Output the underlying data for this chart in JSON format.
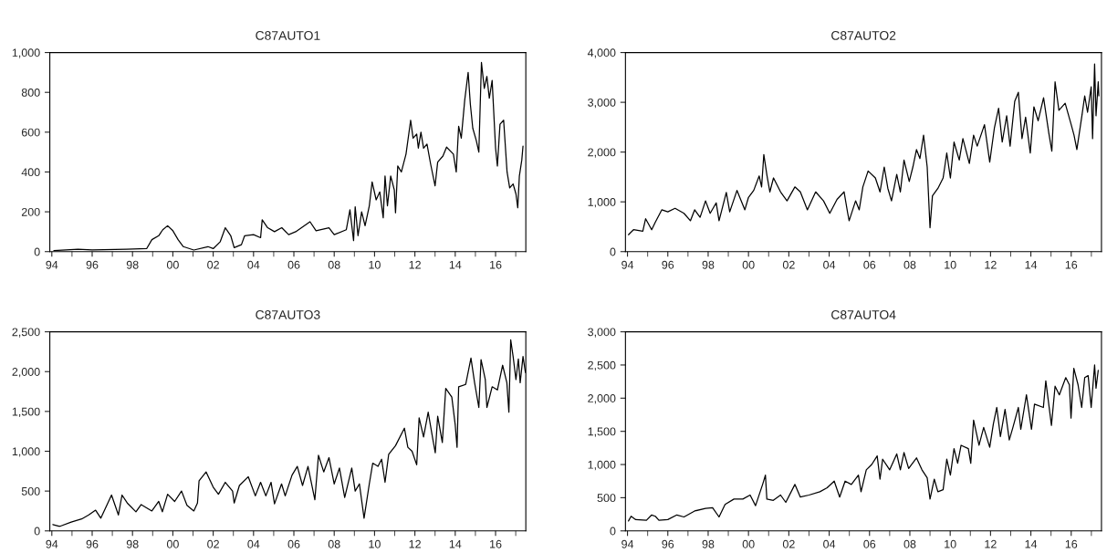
{
  "chart_data": [
    {
      "type": "line",
      "title": "C87AUTO1",
      "xlim": [
        1993.9,
        2017.5
      ],
      "ylim": [
        0,
        1000
      ],
      "yticks": [
        0,
        200,
        400,
        600,
        800,
        {
          "value": 1000,
          "label": "1,000"
        }
      ],
      "xticks": [
        {
          "value": 1994,
          "label": "94"
        },
        {
          "value": 1995,
          "label": null
        },
        {
          "value": 1996,
          "label": "96"
        },
        {
          "value": 1997,
          "label": null
        },
        {
          "value": 1998,
          "label": "98"
        },
        {
          "value": 1999,
          "label": null
        },
        {
          "value": 2000,
          "label": "00"
        },
        {
          "value": 2001,
          "label": null
        },
        {
          "value": 2002,
          "label": "02"
        },
        {
          "value": 2003,
          "label": null
        },
        {
          "value": 2004,
          "label": "04"
        },
        {
          "value": 2005,
          "label": null
        },
        {
          "value": 2006,
          "label": "06"
        },
        {
          "value": 2007,
          "label": null
        },
        {
          "value": 2008,
          "label": "08"
        },
        {
          "value": 2009,
          "label": null
        },
        {
          "value": 2010,
          "label": "10"
        },
        {
          "value": 2011,
          "label": null
        },
        {
          "value": 2012,
          "label": "12"
        },
        {
          "value": 2013,
          "label": null
        },
        {
          "value": 2014,
          "label": "14"
        },
        {
          "value": 2015,
          "label": null
        },
        {
          "value": 2016,
          "label": "16"
        },
        {
          "value": 2017,
          "label": null
        }
      ],
      "series": [
        {
          "color": "#000000",
          "x": [
            1994.1,
            1995.3,
            1996.0,
            1997.7,
            1998.7,
            1998.96,
            1999.3,
            1999.5,
            1999.74,
            2000.0,
            2000.26,
            2000.52,
            2001.04,
            2001.74,
            2002.0,
            2002.35,
            2002.6,
            2002.87,
            2003.04,
            2003.4,
            2003.56,
            2004.0,
            2004.35,
            2004.43,
            2004.7,
            2005.04,
            2005.4,
            2005.74,
            2006.09,
            2006.8,
            2007.1,
            2007.74,
            2008.0,
            2008.6,
            2008.78,
            2008.96,
            2009.04,
            2009.18,
            2009.36,
            2009.53,
            2009.74,
            2009.88,
            2010.08,
            2010.26,
            2010.43,
            2010.52,
            2010.64,
            2010.8,
            2010.98,
            2011.04,
            2011.15,
            2011.33,
            2011.56,
            2011.79,
            2011.91,
            2012.09,
            2012.17,
            2012.3,
            2012.43,
            2012.6,
            2012.78,
            2013.0,
            2013.13,
            2013.39,
            2013.57,
            2013.91,
            2014.05,
            2014.17,
            2014.3,
            2014.47,
            2014.64,
            2014.75,
            2014.87,
            2015.04,
            2015.17,
            2015.3,
            2015.44,
            2015.57,
            2015.69,
            2015.83,
            2016.0,
            2016.09,
            2016.22,
            2016.4,
            2016.57,
            2016.7,
            2016.87,
            2017.01,
            2017.1,
            2017.18,
            2017.3,
            2017.36
          ],
          "values": [
            5,
            12,
            8,
            12,
            15,
            60,
            80,
            110,
            130,
            105,
            60,
            25,
            8,
            25,
            15,
            50,
            120,
            80,
            20,
            35,
            80,
            85,
            70,
            160,
            120,
            100,
            120,
            85,
            100,
            150,
            105,
            120,
            85,
            110,
            210,
            55,
            225,
            80,
            200,
            130,
            230,
            350,
            260,
            300,
            170,
            380,
            230,
            380,
            310,
            195,
            430,
            400,
            490,
            660,
            570,
            590,
            520,
            600,
            520,
            540,
            440,
            330,
            450,
            480,
            525,
            490,
            400,
            630,
            570,
            760,
            900,
            740,
            620,
            560,
            500,
            950,
            820,
            880,
            770,
            860,
            520,
            430,
            640,
            660,
            400,
            320,
            340,
            290,
            220,
            380,
            460,
            530
          ]
        }
      ]
    },
    {
      "type": "line",
      "title": "C87AUTO2",
      "xlim": [
        1993.9,
        2017.5
      ],
      "ylim": [
        0,
        4000
      ],
      "yticks": [
        0,
        {
          "value": 1000,
          "label": "1,000"
        },
        {
          "value": 2000,
          "label": "2,000"
        },
        {
          "value": 3000,
          "label": "3,000"
        },
        {
          "value": 4000,
          "label": "4,000"
        }
      ],
      "xticks": [
        {
          "value": 1994,
          "label": "94"
        },
        {
          "value": 1995,
          "label": null
        },
        {
          "value": 1996,
          "label": "96"
        },
        {
          "value": 1997,
          "label": null
        },
        {
          "value": 1998,
          "label": "98"
        },
        {
          "value": 1999,
          "label": null
        },
        {
          "value": 2000,
          "label": "00"
        },
        {
          "value": 2001,
          "label": null
        },
        {
          "value": 2002,
          "label": "02"
        },
        {
          "value": 2003,
          "label": null
        },
        {
          "value": 2004,
          "label": "04"
        },
        {
          "value": 2005,
          "label": null
        },
        {
          "value": 2006,
          "label": "06"
        },
        {
          "value": 2007,
          "label": null
        },
        {
          "value": 2008,
          "label": "08"
        },
        {
          "value": 2009,
          "label": null
        },
        {
          "value": 2010,
          "label": "10"
        },
        {
          "value": 2011,
          "label": null
        },
        {
          "value": 2012,
          "label": "12"
        },
        {
          "value": 2013,
          "label": null
        },
        {
          "value": 2014,
          "label": "14"
        },
        {
          "value": 2015,
          "label": null
        },
        {
          "value": 2016,
          "label": "16"
        },
        {
          "value": 2017,
          "label": null
        }
      ],
      "series": [
        {
          "color": "#000000",
          "x": [
            1994.05,
            1994.3,
            1994.76,
            1994.9,
            1995.2,
            1995.38,
            1995.7,
            1996.0,
            1996.36,
            1996.8,
            1997.12,
            1997.33,
            1997.6,
            1997.87,
            1998.1,
            1998.4,
            1998.54,
            1998.9,
            1999.07,
            1999.43,
            1999.82,
            2000.0,
            2000.26,
            2000.53,
            2000.65,
            2000.76,
            2000.92,
            2001.06,
            2001.24,
            2001.59,
            2001.91,
            2002.3,
            2002.57,
            2002.92,
            2003.33,
            2003.72,
            2004.03,
            2004.39,
            2004.74,
            2004.92,
            2004.99,
            2005.31,
            2005.49,
            2005.67,
            2005.93,
            2006.29,
            2006.52,
            2006.73,
            2006.91,
            2007.09,
            2007.35,
            2007.53,
            2007.71,
            2007.97,
            2008.15,
            2008.33,
            2008.5,
            2008.68,
            2008.86,
            2009.0,
            2009.12,
            2009.39,
            2009.65,
            2009.83,
            2010.01,
            2010.19,
            2010.45,
            2010.63,
            2010.95,
            2011.16,
            2011.34,
            2011.7,
            2011.96,
            2012.19,
            2012.4,
            2012.58,
            2012.8,
            2012.97,
            2013.2,
            2013.38,
            2013.56,
            2013.74,
            2013.97,
            2014.15,
            2014.36,
            2014.63,
            2014.89,
            2015.04,
            2015.2,
            2015.39,
            2015.7,
            2016.0,
            2016.14,
            2016.28,
            2016.53,
            2016.67,
            2016.81,
            2016.99,
            2017.06,
            2017.16,
            2017.23,
            2017.34,
            2017.37
          ],
          "values": [
            340,
            440,
            410,
            660,
            440,
            590,
            840,
            800,
            870,
            770,
            620,
            840,
            690,
            1020,
            770,
            980,
            620,
            1190,
            800,
            1230,
            840,
            1090,
            1230,
            1520,
            1300,
            1950,
            1520,
            1200,
            1480,
            1200,
            1020,
            1300,
            1200,
            840,
            1200,
            1020,
            770,
            1050,
            1200,
            770,
            620,
            1020,
            840,
            1300,
            1620,
            1480,
            1200,
            1700,
            1270,
            1020,
            1550,
            1200,
            1840,
            1410,
            1700,
            2050,
            1870,
            2340,
            1700,
            480,
            1120,
            1270,
            1480,
            1980,
            1480,
            2200,
            1840,
            2270,
            1770,
            2340,
            2120,
            2550,
            1800,
            2480,
            2880,
            2200,
            2730,
            2120,
            3020,
            3200,
            2270,
            2700,
            1980,
            2910,
            2630,
            3090,
            2380,
            2020,
            3410,
            2840,
            2980,
            2550,
            2340,
            2050,
            2730,
            3130,
            2800,
            3310,
            2270,
            3770,
            2730,
            3410,
            3130
          ]
        }
      ]
    },
    {
      "type": "line",
      "title": "C87AUTO3",
      "xlim": [
        1993.9,
        2017.5
      ],
      "ylim": [
        0,
        2500
      ],
      "yticks": [
        0,
        500,
        {
          "value": 1000,
          "label": "1,000"
        },
        {
          "value": 1500,
          "label": "1,500"
        },
        {
          "value": 2000,
          "label": "2,000"
        },
        {
          "value": 2500,
          "label": "2,500"
        }
      ],
      "xticks": [
        {
          "value": 1994,
          "label": "94"
        },
        {
          "value": 1995,
          "label": null
        },
        {
          "value": 1996,
          "label": "96"
        },
        {
          "value": 1997,
          "label": null
        },
        {
          "value": 1998,
          "label": "98"
        },
        {
          "value": 1999,
          "label": null
        },
        {
          "value": 2000,
          "label": "00"
        },
        {
          "value": 2001,
          "label": null
        },
        {
          "value": 2002,
          "label": "02"
        },
        {
          "value": 2003,
          "label": null
        },
        {
          "value": 2004,
          "label": "04"
        },
        {
          "value": 2005,
          "label": null
        },
        {
          "value": 2006,
          "label": "06"
        },
        {
          "value": 2007,
          "label": null
        },
        {
          "value": 2008,
          "label": "08"
        },
        {
          "value": 2009,
          "label": null
        },
        {
          "value": 2010,
          "label": "10"
        },
        {
          "value": 2011,
          "label": null
        },
        {
          "value": 2012,
          "label": "12"
        },
        {
          "value": 2013,
          "label": null
        },
        {
          "value": 2014,
          "label": "14"
        },
        {
          "value": 2015,
          "label": null
        },
        {
          "value": 2016,
          "label": "16"
        },
        {
          "value": 2017,
          "label": null
        }
      ],
      "series": [
        {
          "color": "#000000",
          "x": [
            1994.05,
            1994.35,
            1994.43,
            1994.96,
            1995.48,
            1995.83,
            1996.17,
            1996.43,
            1996.96,
            1997.3,
            1997.48,
            1997.74,
            1998.17,
            1998.43,
            1998.96,
            1999.3,
            1999.48,
            1999.74,
            2000.09,
            2000.43,
            2000.7,
            2001.04,
            2001.22,
            2001.3,
            2001.65,
            2002.0,
            2002.26,
            2002.6,
            2002.96,
            2003.04,
            2003.3,
            2003.74,
            2004.09,
            2004.35,
            2004.61,
            2004.87,
            2005.04,
            2005.39,
            2005.57,
            2005.91,
            2006.17,
            2006.43,
            2006.7,
            2007.04,
            2007.22,
            2007.48,
            2007.74,
            2008.0,
            2008.26,
            2008.52,
            2008.87,
            2009.04,
            2009.25,
            2009.48,
            2009.74,
            2009.91,
            2010.17,
            2010.35,
            2010.52,
            2010.7,
            2011.04,
            2011.48,
            2011.65,
            2011.86,
            2012.09,
            2012.21,
            2012.43,
            2012.66,
            2012.87,
            2013.01,
            2013.13,
            2013.36,
            2013.53,
            2013.83,
            2014.0,
            2014.09,
            2014.17,
            2014.52,
            2014.78,
            2014.96,
            2015.17,
            2015.28,
            2015.49,
            2015.57,
            2015.83,
            2016.09,
            2016.35,
            2016.56,
            2016.66,
            2016.75,
            2016.87,
            2017.01,
            2017.13,
            2017.22,
            2017.36,
            2017.48
          ],
          "values": [
            80,
            60,
            60,
            110,
            150,
            200,
            260,
            160,
            450,
            200,
            450,
            350,
            240,
            330,
            250,
            370,
            240,
            460,
            370,
            500,
            320,
            250,
            350,
            630,
            740,
            550,
            460,
            610,
            500,
            350,
            570,
            680,
            440,
            610,
            440,
            610,
            340,
            590,
            440,
            700,
            810,
            570,
            810,
            390,
            950,
            740,
            920,
            590,
            790,
            420,
            790,
            500,
            590,
            160,
            590,
            850,
            810,
            900,
            610,
            960,
            1070,
            1290,
            1050,
            1000,
            830,
            1420,
            1180,
            1490,
            1180,
            980,
            1440,
            1110,
            1790,
            1680,
            1330,
            1050,
            1810,
            1840,
            2170,
            1860,
            1550,
            2150,
            1900,
            1550,
            1810,
            1770,
            2080,
            1860,
            1490,
            2400,
            2190,
            1900,
            2160,
            1860,
            2190,
            1990
          ]
        }
      ]
    },
    {
      "type": "line",
      "title": "C87AUTO4",
      "xlim": [
        1993.9,
        2017.5
      ],
      "ylim": [
        0,
        3000
      ],
      "yticks": [
        0,
        500,
        {
          "value": 1000,
          "label": "1,000"
        },
        {
          "value": 1500,
          "label": "1,500"
        },
        {
          "value": 2000,
          "label": "2,000"
        },
        {
          "value": 2500,
          "label": "2,500"
        },
        {
          "value": 3000,
          "label": "3,000"
        }
      ],
      "xticks": [
        {
          "value": 1994,
          "label": "94"
        },
        {
          "value": 1995,
          "label": null
        },
        {
          "value": 1996,
          "label": "96"
        },
        {
          "value": 1997,
          "label": null
        },
        {
          "value": 1998,
          "label": "98"
        },
        {
          "value": 1999,
          "label": null
        },
        {
          "value": 2000,
          "label": "00"
        },
        {
          "value": 2001,
          "label": null
        },
        {
          "value": 2002,
          "label": "02"
        },
        {
          "value": 2003,
          "label": null
        },
        {
          "value": 2004,
          "label": "04"
        },
        {
          "value": 2005,
          "label": null
        },
        {
          "value": 2006,
          "label": "06"
        },
        {
          "value": 2007,
          "label": null
        },
        {
          "value": 2008,
          "label": "08"
        },
        {
          "value": 2009,
          "label": null
        },
        {
          "value": 2010,
          "label": "10"
        },
        {
          "value": 2011,
          "label": null
        },
        {
          "value": 2012,
          "label": "12"
        },
        {
          "value": 2013,
          "label": null
        },
        {
          "value": 2014,
          "label": "14"
        },
        {
          "value": 2015,
          "label": null
        },
        {
          "value": 2016,
          "label": "16"
        },
        {
          "value": 2017,
          "label": null
        }
      ],
      "series": [
        {
          "color": "#000000",
          "x": [
            1994.05,
            1994.18,
            1994.41,
            1994.94,
            1995.2,
            1995.38,
            1995.56,
            1996.0,
            1996.45,
            1996.8,
            1997.33,
            1997.87,
            1998.22,
            1998.54,
            1998.84,
            1999.28,
            1999.72,
            2000.08,
            2000.35,
            2000.7,
            2000.84,
            2000.91,
            2001.23,
            2001.59,
            2001.85,
            2002.3,
            2002.57,
            2003.0,
            2003.54,
            2003.9,
            2004.25,
            2004.52,
            2004.79,
            2005.1,
            2005.45,
            2005.58,
            2005.84,
            2006.11,
            2006.38,
            2006.52,
            2006.65,
            2007.0,
            2007.35,
            2007.53,
            2007.71,
            2007.94,
            2008.33,
            2008.6,
            2008.86,
            2009.0,
            2009.21,
            2009.39,
            2009.65,
            2009.83,
            2010.01,
            2010.19,
            2010.37,
            2010.54,
            2010.9,
            2011.02,
            2011.16,
            2011.43,
            2011.66,
            2011.96,
            2012.14,
            2012.31,
            2012.49,
            2012.72,
            2012.93,
            2013.11,
            2013.38,
            2013.5,
            2013.78,
            2014.03,
            2014.18,
            2014.62,
            2014.74,
            2015.02,
            2015.2,
            2015.41,
            2015.73,
            2015.91,
            2015.99,
            2016.13,
            2016.34,
            2016.52,
            2016.67,
            2016.84,
            2016.99,
            2017.16,
            2017.23,
            2017.34
          ],
          "values": [
            150,
            220,
            170,
            160,
            240,
            220,
            160,
            170,
            240,
            210,
            300,
            340,
            350,
            210,
            400,
            480,
            480,
            540,
            380,
            700,
            840,
            480,
            460,
            540,
            430,
            700,
            510,
            540,
            590,
            650,
            750,
            510,
            750,
            700,
            840,
            590,
            920,
            1000,
            1130,
            780,
            1080,
            920,
            1160,
            920,
            1180,
            940,
            1100,
            920,
            800,
            480,
            780,
            590,
            620,
            1080,
            840,
            1240,
            1020,
            1290,
            1240,
            1020,
            1670,
            1290,
            1560,
            1260,
            1610,
            1860,
            1420,
            1830,
            1370,
            1560,
            1860,
            1530,
            2050,
            1530,
            1910,
            1860,
            2260,
            1590,
            2180,
            2050,
            2310,
            2200,
            1700,
            2450,
            2200,
            1860,
            2310,
            2340,
            1860,
            2500,
            2150,
            2420
          ]
        }
      ]
    }
  ]
}
